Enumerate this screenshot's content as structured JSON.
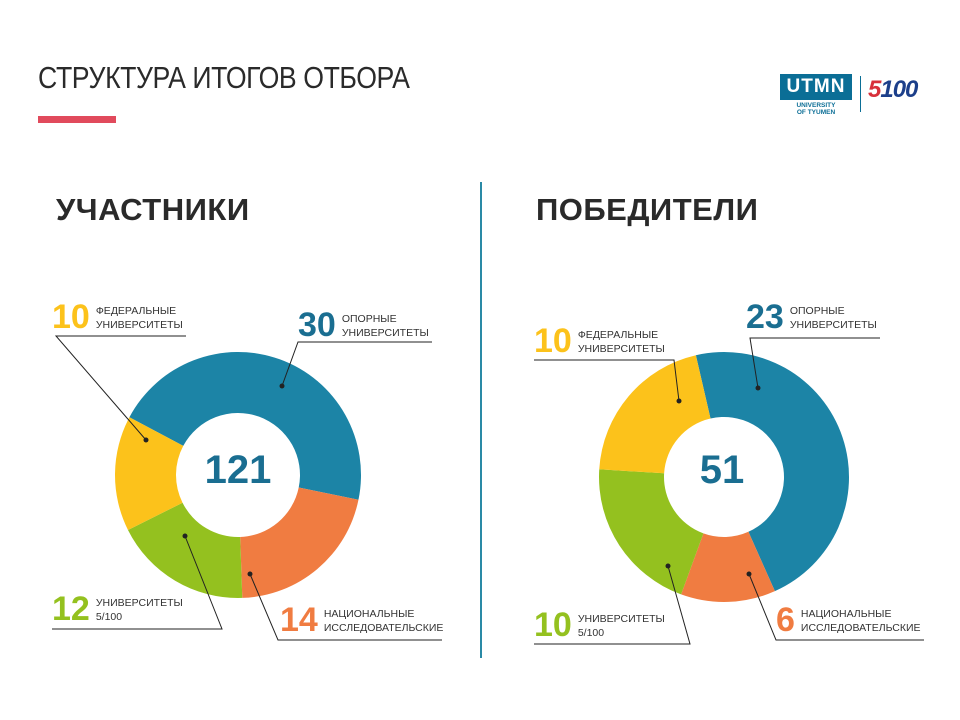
{
  "header": {
    "title": "СТРУКТУРА ИТОГОВ ОТБОРА",
    "logo_text": "UTMN",
    "logo_sub_line1": "UNIVERSITY",
    "logo_sub_line2": "OF TYUMEN",
    "logo_5": "5",
    "logo_100": "100"
  },
  "colors": {
    "blue": "#1c84a6",
    "yellow": "#fcc21b",
    "green": "#94c11f",
    "orange": "#f07c41",
    "accent_red": "#e14a5c",
    "number_blue": "#1a6e91"
  },
  "chart_data": [
    {
      "type": "pie",
      "title": "УЧАСТНИКИ",
      "total": "121",
      "slices": [
        {
          "value": 30,
          "number": "30",
          "label1": "ОПОРНЫЕ",
          "label2": "УНИВЕРСИТЕТЫ",
          "color": "#1c84a6"
        },
        {
          "value": 14,
          "number": "14",
          "label1": "НАЦИОНАЛЬНЫЕ",
          "label2": "ИССЛЕДОВАТЕЛЬСКИЕ",
          "color": "#f07c41"
        },
        {
          "value": 12,
          "number": "12",
          "label1": "УНИВЕРСИТЕТЫ",
          "label2": "5/100",
          "color": "#94c11f"
        },
        {
          "value": 10,
          "number": "10",
          "label1": "ФЕДЕРАЛЬНЫЕ",
          "label2": "УНИВЕРСИТЕТЫ",
          "color": "#fcc21b"
        }
      ]
    },
    {
      "type": "pie",
      "title": "ПОБЕДИТЕЛИ",
      "total": "51",
      "slices": [
        {
          "value": 23,
          "number": "23",
          "label1": "ОПОРНЫЕ",
          "label2": "УНИВЕРСИТЕТЫ",
          "color": "#1c84a6"
        },
        {
          "value": 6,
          "number": "6",
          "label1": "НАЦИОНАЛЬНЫЕ",
          "label2": "ИССЛЕДОВАТЕЛЬСКИЕ",
          "color": "#f07c41"
        },
        {
          "value": 10,
          "number": "10",
          "label1": "УНИВЕРСИТЕТЫ",
          "label2": "5/100",
          "color": "#94c11f"
        },
        {
          "value": 10,
          "number": "10",
          "label1": "ФЕДЕРАЛЬНЫЕ",
          "label2": "УНИВЕРСИТЕТЫ",
          "color": "#fcc21b"
        }
      ]
    }
  ]
}
